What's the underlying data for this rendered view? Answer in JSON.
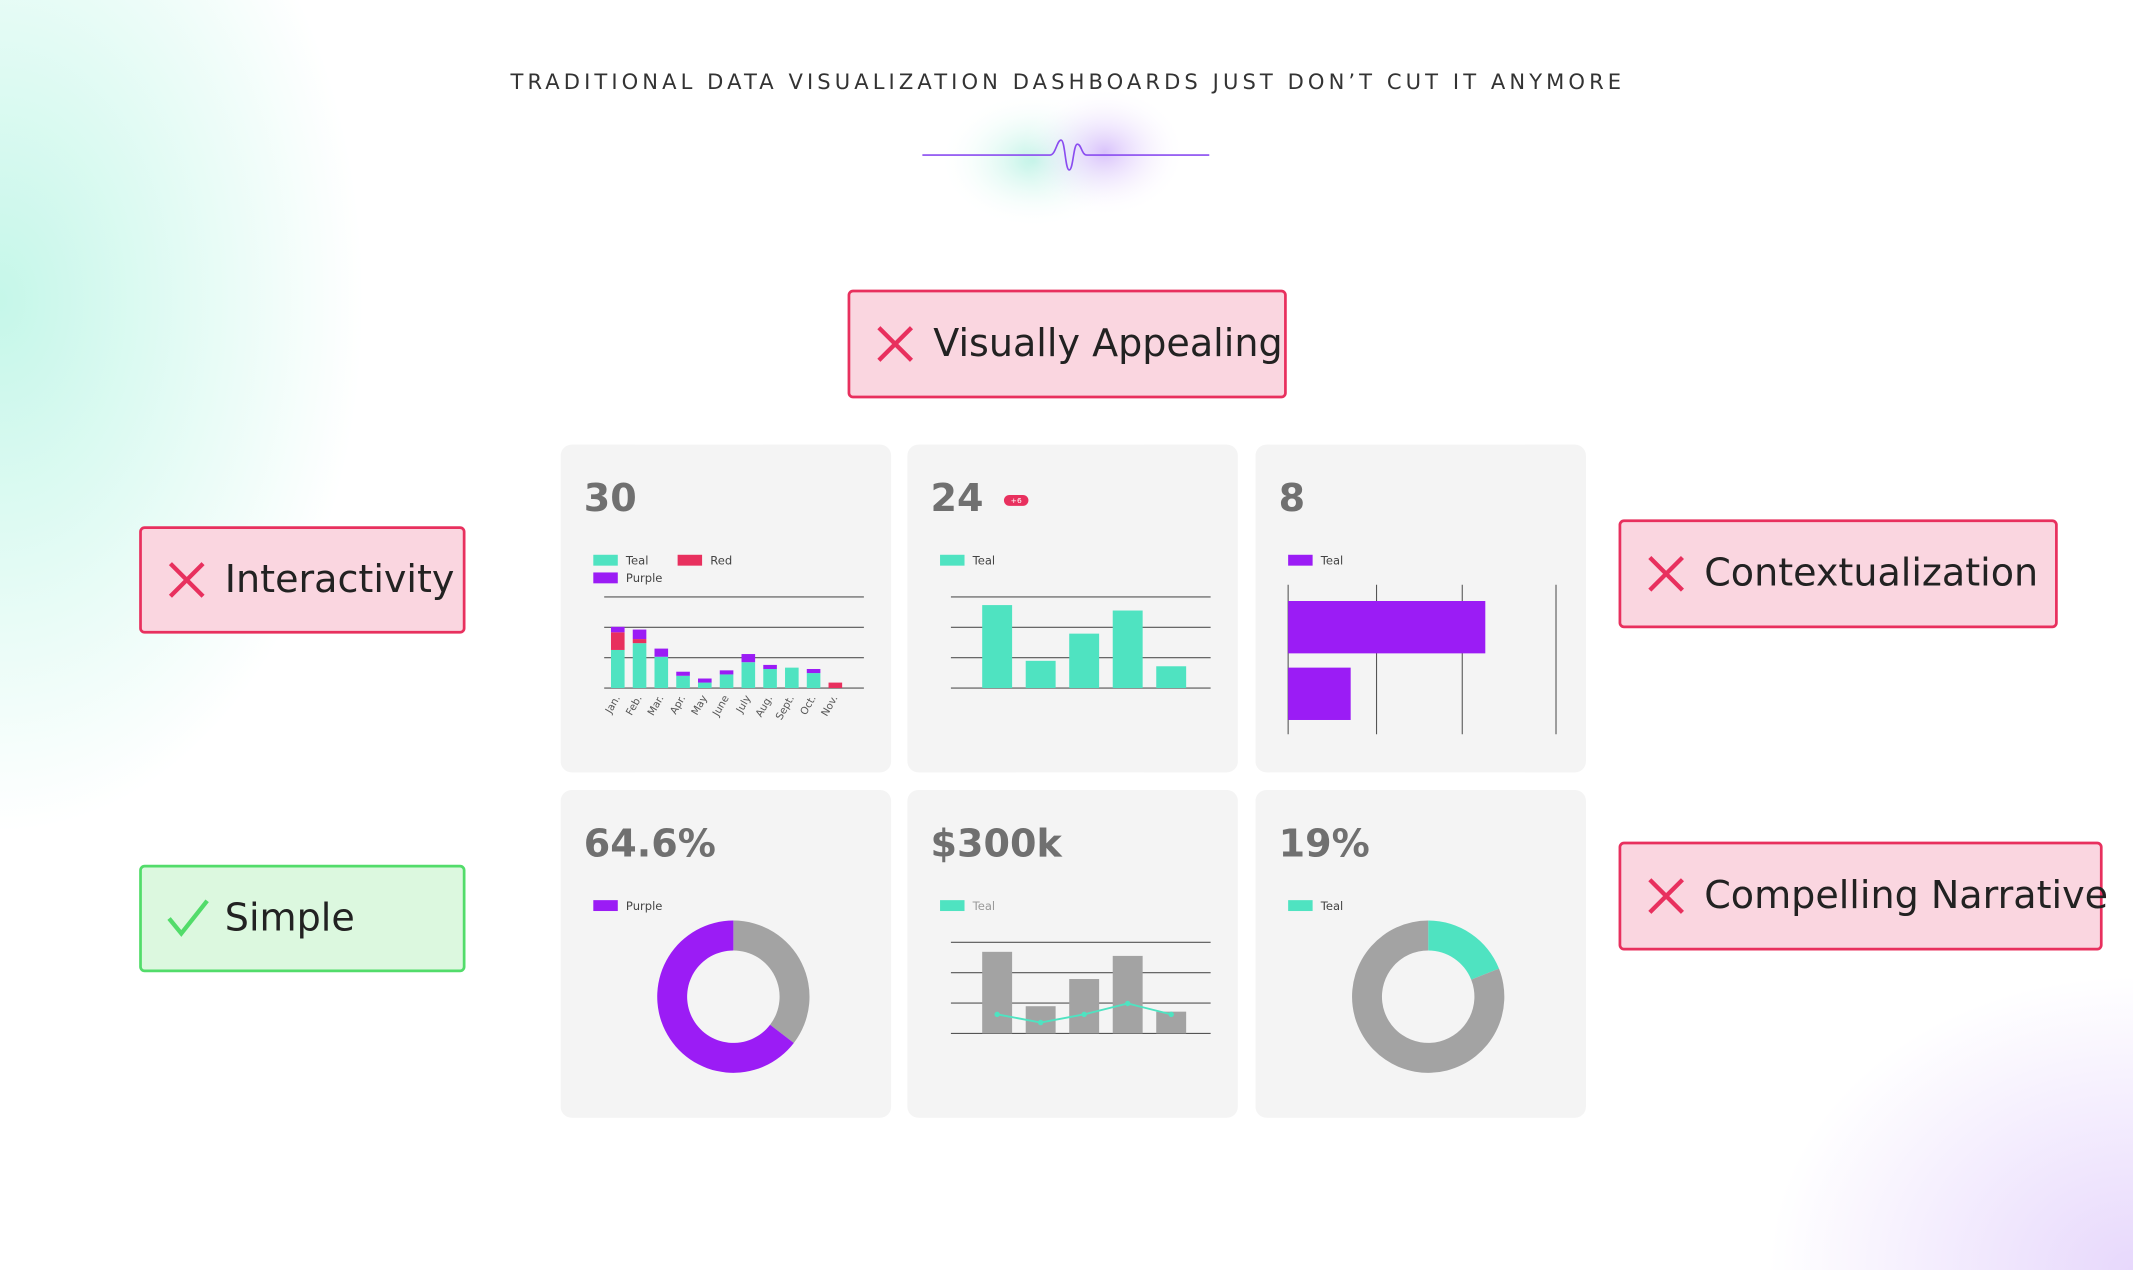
{
  "header": {
    "title": "TRADITIONAL DATA VISUALIZATION DASHBOARDS JUST DON’T CUT IT ANYMORE"
  },
  "tags": [
    {
      "label": "Visually Appealing",
      "status": "fail"
    },
    {
      "label": "Interactivity",
      "status": "fail"
    },
    {
      "label": "Contextualization",
      "status": "fail"
    },
    {
      "label": "Simple",
      "status": "pass"
    },
    {
      "label": "Compelling Narrative",
      "status": "fail"
    }
  ],
  "cards": [
    {
      "value": "30",
      "chart": {
        "type": "stacked-bar",
        "categories": [
          "Jan.",
          "Feb.",
          "Mar.",
          "Apr.",
          "May",
          "June",
          "July",
          "Aug.",
          "Sept.",
          "Oct.",
          "Nov."
        ],
        "series": [
          {
            "name": "Teal",
            "color": "#4fe3c1",
            "values": [
              28,
              33,
              23,
              9,
              4,
              10,
              19,
              14,
              15,
              11,
              0
            ]
          },
          {
            "name": "Red",
            "color": "#e8305e",
            "values": [
              13,
              3,
              0,
              0,
              0,
              0,
              0,
              0,
              0,
              0,
              4
            ]
          },
          {
            "name": "Purple",
            "color": "#9b1cf5",
            "values": [
              4,
              7,
              6,
              3,
              3,
              3,
              6,
              3,
              0,
              3,
              0
            ]
          }
        ],
        "ylim": [
          0,
          67
        ]
      }
    },
    {
      "value": "24",
      "badge": "+6",
      "chart": {
        "type": "bar",
        "series": [
          {
            "name": "Teal",
            "color": "#4fe3c1",
            "values": [
              61,
              20,
              40,
              57,
              16
            ]
          }
        ],
        "ylim": [
          0,
          67
        ]
      }
    },
    {
      "value": "8",
      "chart": {
        "type": "hbar",
        "series": [
          {
            "name": "Teal",
            "color": "#9b1cf5",
            "values": [
              145,
              46
            ]
          }
        ],
        "xlim": [
          0,
          197
        ]
      }
    },
    {
      "value": "64.6%",
      "chart": {
        "type": "donut",
        "legend": [
          {
            "name": "Purple",
            "color": "#9b1cf5"
          }
        ],
        "values": [
          35.4,
          64.6
        ],
        "colors": [
          "#a3a3a3",
          "#9b1cf5"
        ]
      }
    },
    {
      "value": "$300k",
      "chart": {
        "type": "bar-line",
        "bars": {
          "color": "#a3a3a3",
          "values": [
            60,
            20,
            40,
            57,
            16
          ]
        },
        "series": [
          {
            "name": "Teal",
            "color": "#4fe3c1",
            "values": [
              14,
              8,
              14,
              22,
              14
            ]
          }
        ],
        "ylim": [
          0,
          67
        ]
      }
    },
    {
      "value": "19%",
      "chart": {
        "type": "donut",
        "legend": [
          {
            "name": "Teal",
            "color": "#4fe3c1"
          }
        ],
        "values": [
          19,
          81
        ],
        "colors": [
          "#4fe3c1",
          "#a3a3a3"
        ]
      }
    }
  ]
}
